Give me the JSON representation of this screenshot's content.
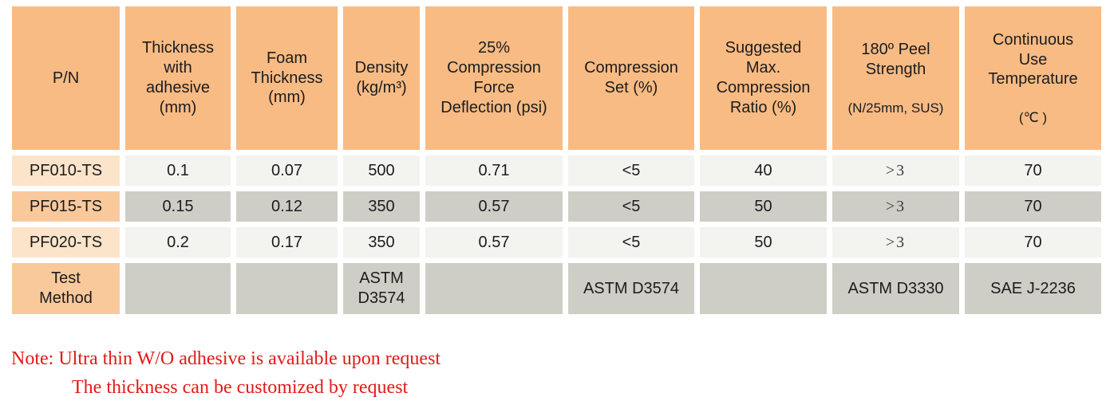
{
  "table": {
    "columns": [
      {
        "label": "P/N"
      },
      {
        "label": "Thickness\nwith\nadhesive\n(mm)"
      },
      {
        "label": "Foam\nThickness\n(mm)"
      },
      {
        "label": "Density\n(kg/m³)"
      },
      {
        "label": "25%\nCompression\nForce\nDeflection (psi)"
      },
      {
        "label": "Compression\nSet (%)"
      },
      {
        "label": "Suggested\nMax.\nCompression\nRatio (%)"
      },
      {
        "label": "180º Peel\nStrength",
        "sub": "(N/25mm, SUS)"
      },
      {
        "label": "Continuous\nUse\nTemperature",
        "sub": "(℃ )"
      }
    ],
    "rows": [
      {
        "pn": "PF010-TS",
        "cells": [
          "0.1",
          "0.07",
          "500",
          "0.71",
          "<5",
          "40",
          ">3",
          "70"
        ]
      },
      {
        "pn": "PF015-TS",
        "cells": [
          "0.15",
          "0.12",
          "350",
          "0.57",
          "<5",
          "50",
          ">3",
          "70"
        ]
      },
      {
        "pn": "PF020-TS",
        "cells": [
          "0.2",
          "0.17",
          "350",
          "0.57",
          "<5",
          "50",
          ">3",
          "70"
        ]
      },
      {
        "pn": "Test\nMethod",
        "cells": [
          "",
          "",
          "ASTM\nD3574",
          "",
          "ASTM D3574",
          "",
          "ASTM D3330",
          "SAE J-2236"
        ]
      }
    ]
  },
  "note": {
    "line1": "Note: Ultra thin W/O adhesive is available upon request",
    "line2": "The thickness can be customized by request"
  },
  "colors": {
    "header_peach": "#f8bb84",
    "row_peach_light": "#fce4ca",
    "row_peach_mid": "#f9c99c",
    "row_gray_light": "#f3f3ef",
    "row_gray_mid": "#cecec7",
    "note_red": "#e01b18",
    "text": "#1c1c1c"
  }
}
